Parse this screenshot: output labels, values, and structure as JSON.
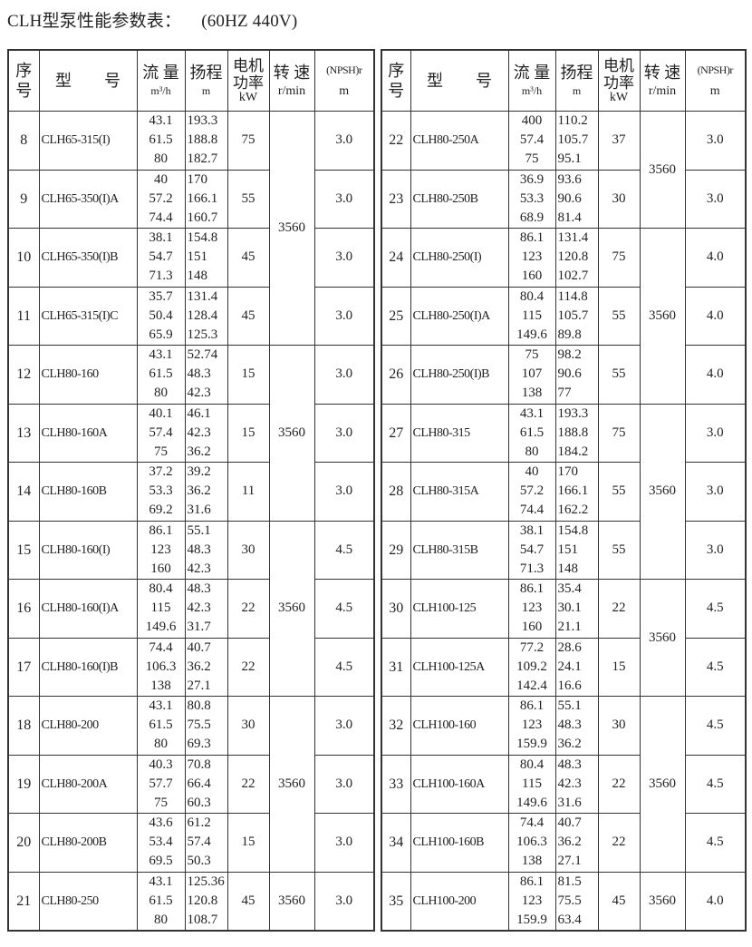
{
  "title": "CLH型泵性能参数表：",
  "subtitle": "(60HZ  440V)",
  "headers": {
    "no": [
      "序",
      "号"
    ],
    "model": "型　　号",
    "flow": {
      "label": "流 量",
      "unit": "m³/h"
    },
    "head": {
      "label": "扬程",
      "unit": "m"
    },
    "power": {
      "label": [
        "电机",
        "功率"
      ],
      "unit": "kW"
    },
    "speed": {
      "label": "转 速",
      "unit": "r/min"
    },
    "npsh": {
      "label": "(NPSH)r",
      "unit": "m"
    }
  },
  "tables": [
    {
      "rows": [
        {
          "no": "8",
          "model": "CLH65-315(I)",
          "flow": [
            "43.1",
            "61.5",
            "80"
          ],
          "head": [
            "193.3",
            "188.8",
            "182.7"
          ],
          "power": "75",
          "npsh": "3.0"
        },
        {
          "no": "9",
          "model": "CLH65-350(I)A",
          "flow": [
            "40",
            "57.2",
            "74.4"
          ],
          "head": [
            "170",
            "166.1",
            "160.7"
          ],
          "power": "55",
          "npsh": "3.0"
        },
        {
          "no": "10",
          "model": "CLH65-350(I)B",
          "flow": [
            "38.1",
            "54.7",
            "71.3"
          ],
          "head": [
            "154.8",
            "151",
            "148"
          ],
          "power": "45",
          "npsh": "3.0"
        },
        {
          "no": "11",
          "model": "CLH65-315(I)C",
          "flow": [
            "35.7",
            "50.4",
            "65.9"
          ],
          "head": [
            "131.4",
            "128.4",
            "125.3"
          ],
          "power": "45",
          "npsh": "3.0"
        },
        {
          "no": "12",
          "model": "CLH80-160",
          "flow": [
            "43.1",
            "61.5",
            "80"
          ],
          "head": [
            "52.74",
            "48.3",
            "42.3"
          ],
          "power": "15",
          "npsh": "3.0"
        },
        {
          "no": "13",
          "model": "CLH80-160A",
          "flow": [
            "40.1",
            "57.4",
            "75"
          ],
          "head": [
            "46.1",
            "42.3",
            "36.2"
          ],
          "power": "15",
          "npsh": "3.0"
        },
        {
          "no": "14",
          "model": "CLH80-160B",
          "flow": [
            "37.2",
            "53.3",
            "69.2"
          ],
          "head": [
            "39.2",
            "36.2",
            "31.6"
          ],
          "power": "11",
          "npsh": "3.0"
        },
        {
          "no": "15",
          "model": "CLH80-160(I)",
          "flow": [
            "86.1",
            "123",
            "160"
          ],
          "head": [
            "55.1",
            "48.3",
            "42.3"
          ],
          "power": "30",
          "npsh": "4.5"
        },
        {
          "no": "16",
          "model": "CLH80-160(I)A",
          "flow": [
            "80.4",
            "115",
            "149.6"
          ],
          "head": [
            "48.3",
            "42.3",
            "31.7"
          ],
          "power": "22",
          "npsh": "4.5"
        },
        {
          "no": "17",
          "model": "CLH80-160(I)B",
          "flow": [
            "74.4",
            "106.3",
            "138"
          ],
          "head": [
            "40.7",
            "36.2",
            "27.1"
          ],
          "power": "22",
          "npsh": "4.5"
        },
        {
          "no": "18",
          "model": "CLH80-200",
          "flow": [
            "43.1",
            "61.5",
            "80"
          ],
          "head": [
            "80.8",
            "75.5",
            "69.3"
          ],
          "power": "30",
          "npsh": "3.0"
        },
        {
          "no": "19",
          "model": "CLH80-200A",
          "flow": [
            "40.3",
            "57.7",
            "75"
          ],
          "head": [
            "70.8",
            "66.4",
            "60.3"
          ],
          "power": "22",
          "npsh": "3.0"
        },
        {
          "no": "20",
          "model": "CLH80-200B",
          "flow": [
            "43.6",
            "53.4",
            "69.5"
          ],
          "head": [
            "61.2",
            "57.4",
            "50.3"
          ],
          "power": "15",
          "npsh": "3.0"
        },
        {
          "no": "21",
          "model": "CLH80-250",
          "flow": [
            "43.1",
            "61.5",
            "80"
          ],
          "head": [
            "125.36",
            "120.8",
            "108.7"
          ],
          "power": "45",
          "npsh": "3.0"
        }
      ],
      "speed_groups": [
        {
          "value": "3560",
          "rows": 4
        },
        {
          "value": "3560",
          "rows": 3
        },
        {
          "value": "3560",
          "rows": 3
        },
        {
          "value": "3560",
          "rows": 3
        },
        {
          "value": "3560",
          "rows": 1
        }
      ]
    },
    {
      "rows": [
        {
          "no": "22",
          "model": "CLH80-250A",
          "flow": [
            "400",
            "57.4",
            "75"
          ],
          "head": [
            "110.2",
            "105.7",
            "95.1"
          ],
          "power": "37",
          "npsh": "3.0"
        },
        {
          "no": "23",
          "model": "CLH80-250B",
          "flow": [
            "36.9",
            "53.3",
            "68.9"
          ],
          "head": [
            "93.6",
            "90.6",
            "81.4"
          ],
          "power": "30",
          "npsh": "3.0"
        },
        {
          "no": "24",
          "model": "CLH80-250(I)",
          "flow": [
            "86.1",
            "123",
            "160"
          ],
          "head": [
            "131.4",
            "120.8",
            "102.7"
          ],
          "power": "75",
          "npsh": "4.0"
        },
        {
          "no": "25",
          "model": "CLH80-250(I)A",
          "flow": [
            "80.4",
            "115",
            "149.6"
          ],
          "head": [
            "114.8",
            "105.7",
            "89.8"
          ],
          "power": "55",
          "npsh": "4.0"
        },
        {
          "no": "26",
          "model": "CLH80-250(I)B",
          "flow": [
            "75",
            "107",
            "138"
          ],
          "head": [
            "98.2",
            "90.6",
            "77"
          ],
          "power": "55",
          "npsh": "4.0"
        },
        {
          "no": "27",
          "model": "CLH80-315",
          "flow": [
            "43.1",
            "61.5",
            "80"
          ],
          "head": [
            "193.3",
            "188.8",
            "184.2"
          ],
          "power": "75",
          "npsh": "3.0"
        },
        {
          "no": "28",
          "model": "CLH80-315A",
          "flow": [
            "40",
            "57.2",
            "74.4"
          ],
          "head": [
            "170",
            "166.1",
            "162.2"
          ],
          "power": "55",
          "npsh": "3.0"
        },
        {
          "no": "29",
          "model": "CLH80-315B",
          "flow": [
            "38.1",
            "54.7",
            "71.3"
          ],
          "head": [
            "154.8",
            "151",
            "148"
          ],
          "power": "55",
          "npsh": "3.0"
        },
        {
          "no": "30",
          "model": "CLH100-125",
          "flow": [
            "86.1",
            "123",
            "160"
          ],
          "head": [
            "35.4",
            "30.1",
            "21.1"
          ],
          "power": "22",
          "npsh": "4.5"
        },
        {
          "no": "31",
          "model": "CLH100-125A",
          "flow": [
            "77.2",
            "109.2",
            "142.4"
          ],
          "head": [
            "28.6",
            "24.1",
            "16.6"
          ],
          "power": "15",
          "npsh": "4.5"
        },
        {
          "no": "32",
          "model": "CLH100-160",
          "flow": [
            "86.1",
            "123",
            "159.9"
          ],
          "head": [
            "55.1",
            "48.3",
            "36.2"
          ],
          "power": "30",
          "npsh": "4.5"
        },
        {
          "no": "33",
          "model": "CLH100-160A",
          "flow": [
            "80.4",
            "115",
            "149.6"
          ],
          "head": [
            "48.3",
            "42.3",
            "31.6"
          ],
          "power": "22",
          "npsh": "4.5"
        },
        {
          "no": "34",
          "model": "CLH100-160B",
          "flow": [
            "74.4",
            "106.3",
            "138"
          ],
          "head": [
            "40.7",
            "36.2",
            "27.1"
          ],
          "power": "22",
          "npsh": "4.5"
        },
        {
          "no": "35",
          "model": "CLH100-200",
          "flow": [
            "86.1",
            "123",
            "159.9"
          ],
          "head": [
            "81.5",
            "75.5",
            "63.4"
          ],
          "power": "45",
          "npsh": "4.0"
        }
      ],
      "speed_groups": [
        {
          "value": "3560",
          "rows": 2
        },
        {
          "value": "3560",
          "rows": 3
        },
        {
          "value": "3560",
          "rows": 3
        },
        {
          "value": "3560",
          "rows": 2
        },
        {
          "value": "3560",
          "rows": 3
        },
        {
          "value": "3560",
          "rows": 1
        }
      ]
    }
  ]
}
